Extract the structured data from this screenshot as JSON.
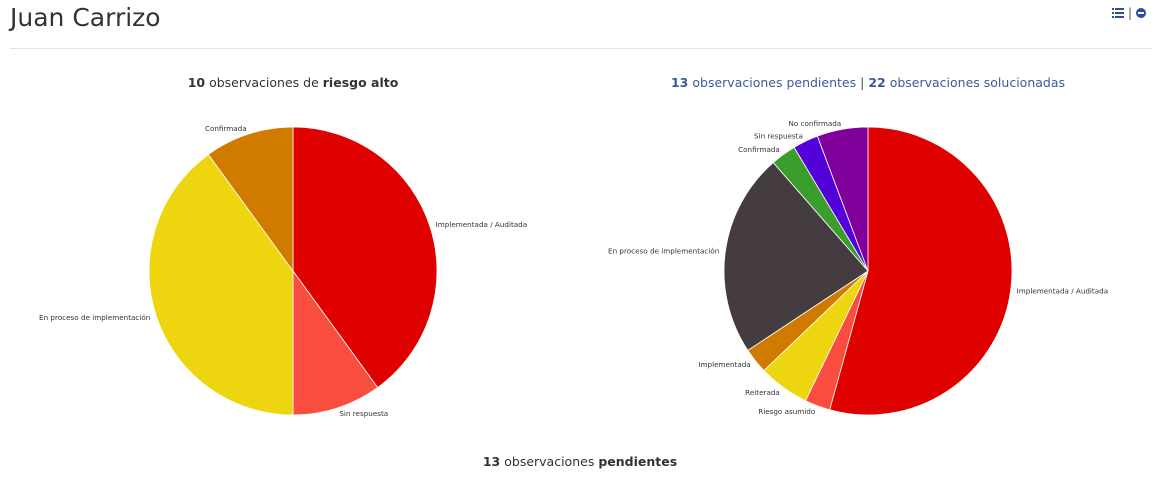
{
  "header": {
    "title": "Juan Carrizo",
    "list_icon": "list-icon",
    "sep": "|",
    "collapse_icon": "minus-circle-icon"
  },
  "titles": {
    "left": {
      "count": "10",
      "text1": "observaciones de",
      "bold": "riesgo alto"
    },
    "right": {
      "count1": "13",
      "text1": "observaciones pendientes",
      "sep": "|",
      "count2": "22",
      "text2": "observaciones solucionadas"
    },
    "bottom": {
      "count": "13",
      "text": "observaciones",
      "bold": "pendientes"
    }
  },
  "chart_data": [
    {
      "type": "pie",
      "title": "10 observaciones de riesgo alto",
      "slices": [
        {
          "label": "Implementada / Auditada",
          "value": 4,
          "color": "#df0000"
        },
        {
          "label": "Sin respuesta",
          "value": 1,
          "color": "#f84d3f"
        },
        {
          "label": "En proceso de implementación",
          "value": 4,
          "color": "#edd610"
        },
        {
          "label": "Confirmada",
          "value": 1,
          "color": "#d17a00"
        }
      ]
    },
    {
      "type": "pie",
      "title": "13 observaciones pendientes | 22 observaciones solucionadas",
      "slices": [
        {
          "label": "Implementada / Auditada",
          "value": 19,
          "color": "#df0000"
        },
        {
          "label": "Riesgo asumido",
          "value": 1,
          "color": "#f84d3f"
        },
        {
          "label": "Reiterada",
          "value": 2,
          "color": "#edd610"
        },
        {
          "label": "Implementada",
          "value": 1,
          "color": "#d17a00"
        },
        {
          "label": "En proceso de implementación",
          "value": 8,
          "color": "#443c40"
        },
        {
          "label": "Confirmada",
          "value": 1,
          "color": "#3a9e2c"
        },
        {
          "label": "Sin respuesta",
          "value": 1,
          "color": "#5300db"
        },
        {
          "label": "No confirmada",
          "value": 2,
          "color": "#80009b"
        }
      ]
    }
  ]
}
